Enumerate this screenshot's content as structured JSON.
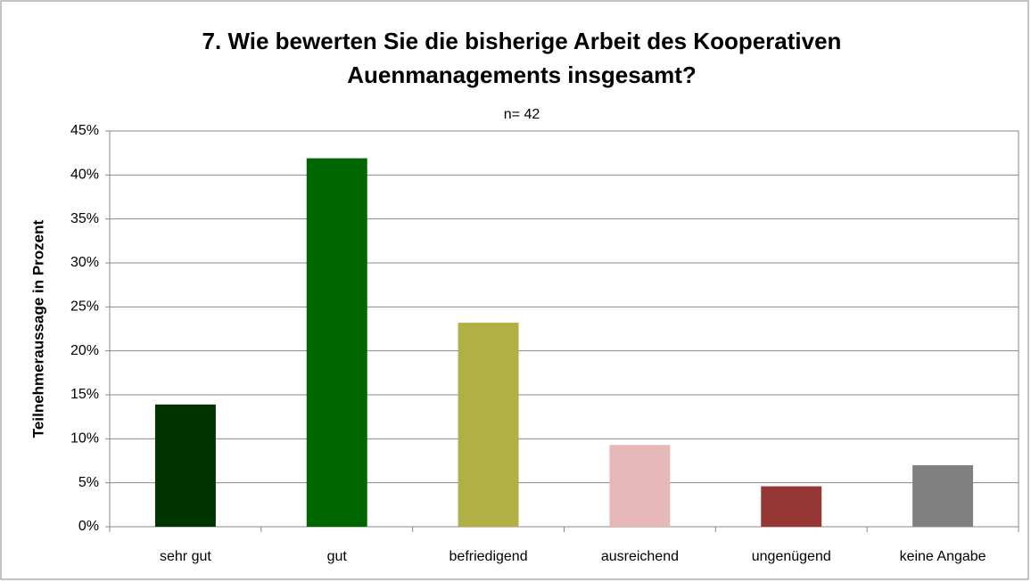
{
  "chart_data": {
    "type": "bar",
    "title": [
      "7. Wie bewerten Sie die bisherige Arbeit des Kooperativen",
      "Auenmanagements insgesamt?"
    ],
    "subtitle": "n= 42",
    "y_label": "Teilnehmeraussage in Prozent",
    "categories": [
      "sehr gut",
      "gut",
      "befriedigend",
      "ausreichend",
      "ungenügend",
      "keine Angabe"
    ],
    "values": [
      13.9,
      41.9,
      23.2,
      9.3,
      4.6,
      7.0
    ],
    "colors": [
      "#003300",
      "#006600",
      "#b0b045",
      "#e6b8b7",
      "#953735",
      "#808080"
    ],
    "ylim": [
      0,
      45
    ],
    "yticks": [
      {
        "value": 0,
        "label": "0%"
      },
      {
        "value": 5,
        "label": "5%"
      },
      {
        "value": 10,
        "label": "10%"
      },
      {
        "value": 15,
        "label": "15%"
      },
      {
        "value": 20,
        "label": "20%"
      },
      {
        "value": 25,
        "label": "25%"
      },
      {
        "value": 30,
        "label": "30%"
      },
      {
        "value": 35,
        "label": "35%"
      },
      {
        "value": 40,
        "label": "40%"
      },
      {
        "value": 45,
        "label": "45%"
      }
    ],
    "grid": true
  }
}
